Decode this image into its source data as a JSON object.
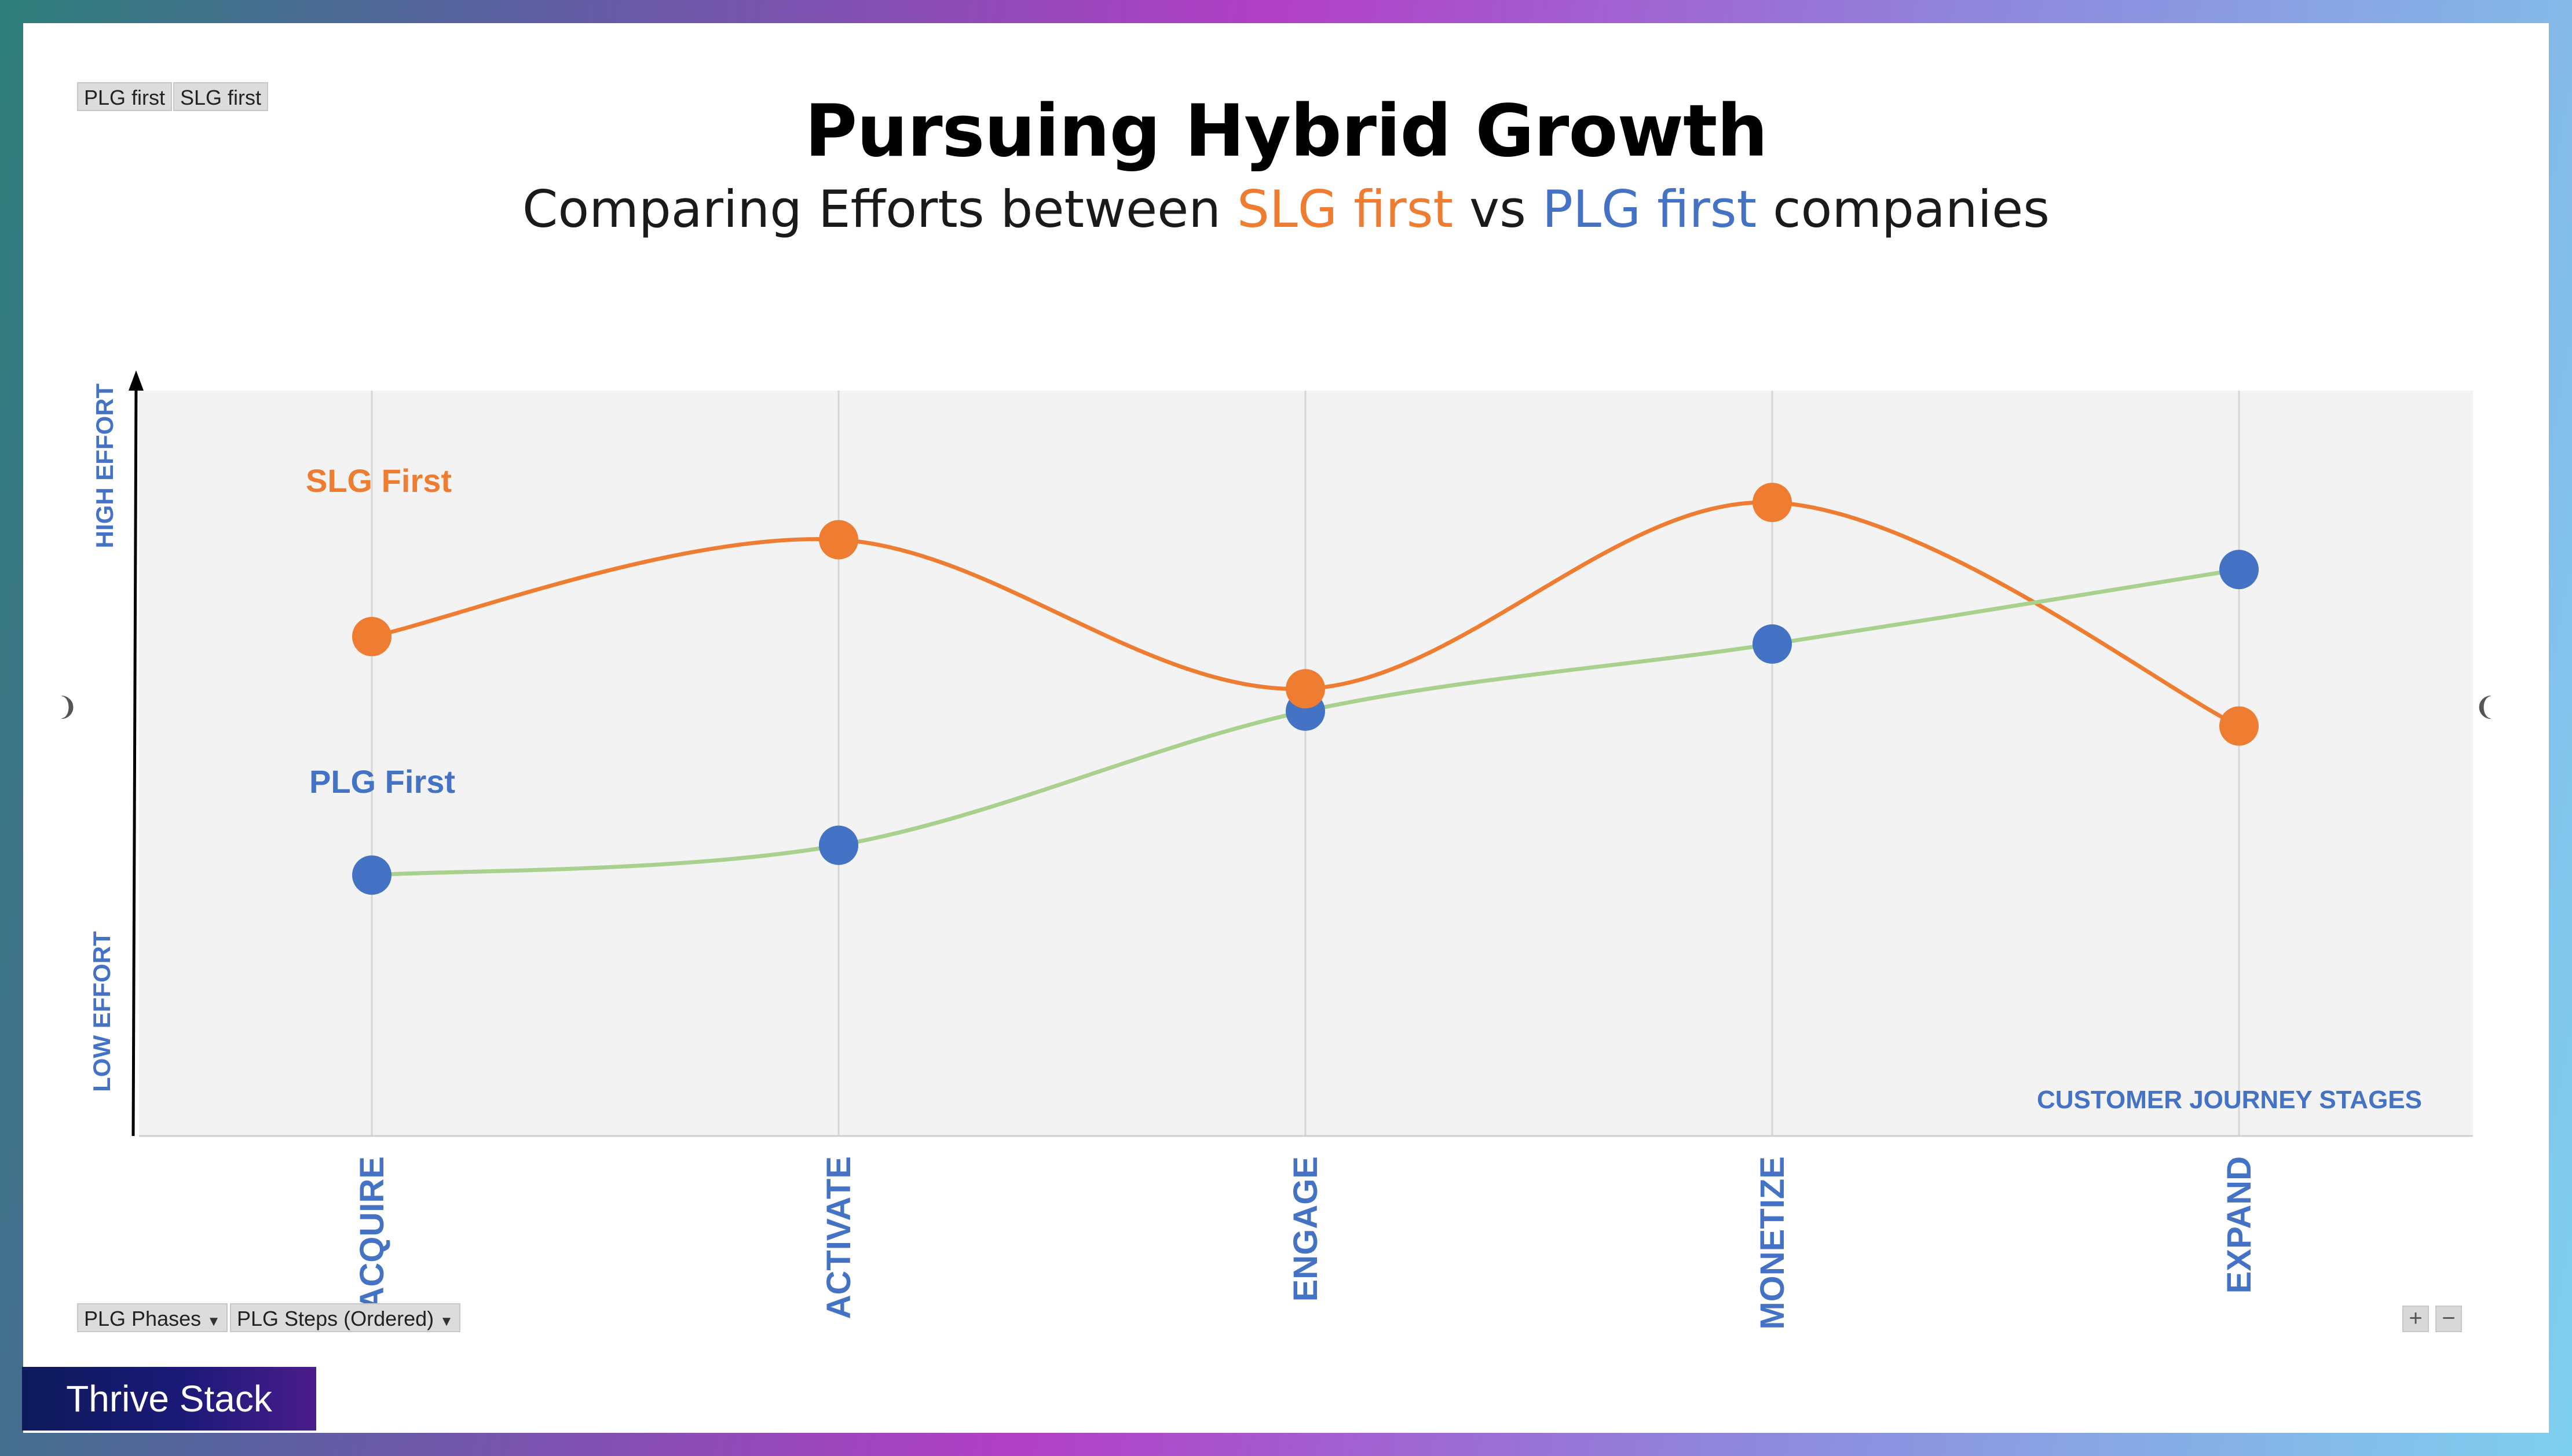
{
  "title": "Pursuing Hybrid Growth",
  "subtitle": {
    "prefix": "Comparing Efforts between ",
    "slg": "SLG first",
    "mid": " vs ",
    "plg": "PLG first",
    "suffix": " companies"
  },
  "filters_top": [
    "PLG first",
    "SLG first"
  ],
  "filters_bottom": [
    "PLG Phases",
    "PLG Steps (Ordered)"
  ],
  "zoom_controls": [
    "+",
    "−"
  ],
  "brand": "Thrive Stack",
  "colors": {
    "slg": "#ee7d31",
    "plg_marker": "#4472c4",
    "plg_line": "#a9d18e",
    "label_blue": "#4472c4",
    "plot_bg": "#f3f3f3"
  },
  "chart_data": {
    "type": "line",
    "categories": [
      "ACQUIRE",
      "ACTIVATE",
      "ENGAGE",
      "MONETIZE",
      "EXPAND"
    ],
    "series": [
      {
        "name": "SLG First",
        "values": [
          6.7,
          8.0,
          6.0,
          8.5,
          5.5
        ]
      },
      {
        "name": "PLG First",
        "values": [
          3.5,
          3.9,
          5.7,
          6.6,
          7.6
        ]
      }
    ],
    "ylim": [
      0,
      10
    ],
    "y_low_label": "LOW EFFORT",
    "y_high_label": "HIGH EFFORT",
    "xlabel": "CUSTOMER JOURNEY STAGES",
    "smooth": true,
    "grid": "vertical"
  }
}
